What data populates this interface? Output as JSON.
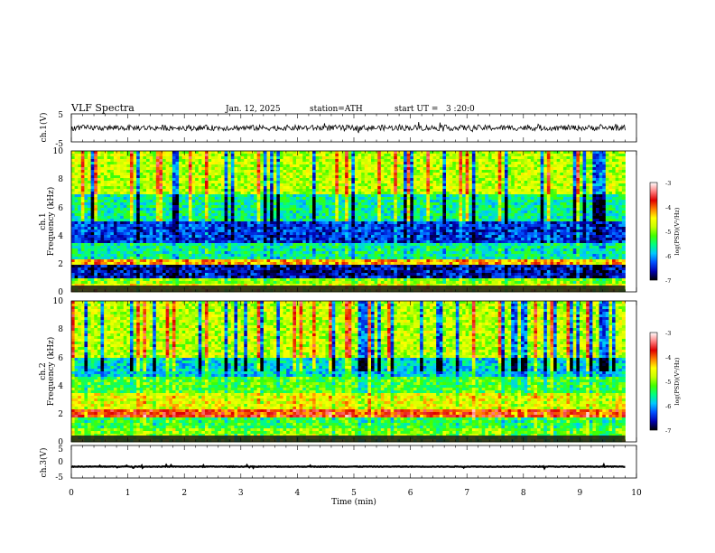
{
  "header": {
    "title": "VLF Spectra",
    "date": "Jan. 12, 2025",
    "station": "station=ATH",
    "start": "start UT =   3 :20:0"
  },
  "chart_data": [
    {
      "type": "line",
      "name": "ch1_waveform",
      "ylabel": "ch.1(V)",
      "ylim": [
        -5,
        5
      ],
      "yticks": [
        "5",
        "-5"
      ],
      "xlim": [
        0,
        10
      ],
      "data_extent_min": 9.8,
      "approx_level": 0,
      "approx_amplitude": 1
    },
    {
      "type": "heatmap",
      "name": "ch1_spectrogram",
      "ylabel": "ch.1\nFrequency (kHz)",
      "ylabel_channel": "ch.1",
      "ylabel_freq": "Frequency (kHz)",
      "ylim": [
        0,
        10
      ],
      "yticks": [
        "0",
        "2",
        "4",
        "6",
        "8",
        "10"
      ],
      "xlim": [
        0,
        10
      ],
      "colorbar": {
        "label": "log(PSD)(V²/Hz)",
        "range": [
          -7,
          -3
        ],
        "ticks": [
          "-3",
          "-4",
          "-5",
          "-6",
          "-7"
        ]
      },
      "bands": [
        {
          "f0": 0.0,
          "f1": 0.6,
          "level": -4.6
        },
        {
          "f0": 0.6,
          "f1": 1.0,
          "level": -5.0
        },
        {
          "f0": 1.0,
          "f1": 2.0,
          "level": -6.6
        },
        {
          "f0": 2.0,
          "f1": 2.4,
          "level": -4.2
        },
        {
          "f0": 2.4,
          "f1": 3.4,
          "level": -5.6
        },
        {
          "f0": 3.4,
          "f1": 5.0,
          "level": -6.4
        },
        {
          "f0": 5.0,
          "f1": 7.0,
          "level": -5.6
        },
        {
          "f0": 7.0,
          "f1": 10.0,
          "level": -4.8
        }
      ]
    },
    {
      "type": "heatmap",
      "name": "ch2_spectrogram",
      "ylabel": "ch.2\nFrequency (kHz)",
      "ylabel_channel": "ch.2",
      "ylabel_freq": "Frequency (kHz)",
      "ylim": [
        0,
        10
      ],
      "yticks": [
        "0",
        "2",
        "4",
        "6",
        "8",
        "10"
      ],
      "xlim": [
        0,
        10
      ],
      "colorbar": {
        "label": "log(PSD)(V²/Hz)",
        "range": [
          -7,
          -3
        ],
        "ticks": [
          "-3",
          "-4",
          "-5",
          "-6",
          "-7"
        ]
      },
      "bands": [
        {
          "f0": 0.0,
          "f1": 1.0,
          "level": -5.0
        },
        {
          "f0": 1.0,
          "f1": 1.8,
          "level": -5.3
        },
        {
          "f0": 1.8,
          "f1": 2.3,
          "level": -3.8
        },
        {
          "f0": 2.3,
          "f1": 3.5,
          "level": -4.6
        },
        {
          "f0": 3.5,
          "f1": 4.6,
          "level": -5.2
        },
        {
          "f0": 4.6,
          "f1": 6.0,
          "level": -5.8
        },
        {
          "f0": 6.0,
          "f1": 10.0,
          "level": -4.8
        }
      ]
    },
    {
      "type": "line",
      "name": "ch3_waveform",
      "ylabel": "ch.3(V)",
      "ylim": [
        -5,
        5
      ],
      "yticks": [
        "5",
        "0",
        "-5"
      ],
      "xlim": [
        0,
        10
      ],
      "data_extent_min": 9.8,
      "approx_level": -1.5,
      "approx_amplitude": 0.25
    }
  ],
  "xaxis": {
    "label": "Time (min)",
    "ticks": [
      "0",
      "1",
      "2",
      "3",
      "4",
      "5",
      "6",
      "7",
      "8",
      "9",
      "10"
    ]
  },
  "colors": {
    "colormap": [
      "#000000",
      "#0000b0",
      "#0050ff",
      "#00c8ff",
      "#00ff80",
      "#40ff00",
      "#c8ff00",
      "#ffff00",
      "#ff8000",
      "#e00000",
      "#ff8080",
      "#ffffff"
    ]
  }
}
